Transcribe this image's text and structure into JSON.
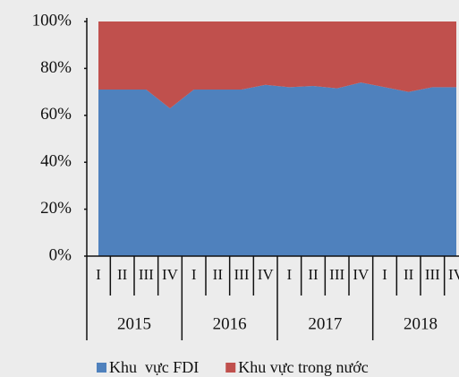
{
  "chart_data": {
    "type": "stacked_area",
    "categories": [
      "I",
      "II",
      "III",
      "IV",
      "I",
      "II",
      "III",
      "IV",
      "I",
      "II",
      "III",
      "IV",
      "I",
      "II",
      "III",
      "IV"
    ],
    "years": [
      "2015",
      "2016",
      "2017",
      "2018"
    ],
    "series": [
      {
        "name": "Khu  vực FDI",
        "color": "#4f81bd",
        "values": [
          71,
          71,
          71,
          63,
          71,
          71,
          71,
          73,
          72,
          72.5,
          71.5,
          74,
          72,
          70,
          72,
          72
        ]
      },
      {
        "name": "Khu vực trong nước",
        "color": "#c0504d",
        "values": [
          29,
          29,
          29,
          37,
          29,
          29,
          29,
          27,
          28,
          27.5,
          28.5,
          26,
          28,
          30,
          28,
          28
        ]
      }
    ],
    "ylim": [
      0,
      100
    ],
    "yticks": [
      {
        "value": 0,
        "label": "0%"
      },
      {
        "value": 20,
        "label": "20%"
      },
      {
        "value": 40,
        "label": "40%"
      },
      {
        "value": 60,
        "label": "60%"
      },
      {
        "value": 80,
        "label": "80%"
      },
      {
        "value": 100,
        "label": "100%"
      }
    ],
    "legend": "bottom"
  }
}
